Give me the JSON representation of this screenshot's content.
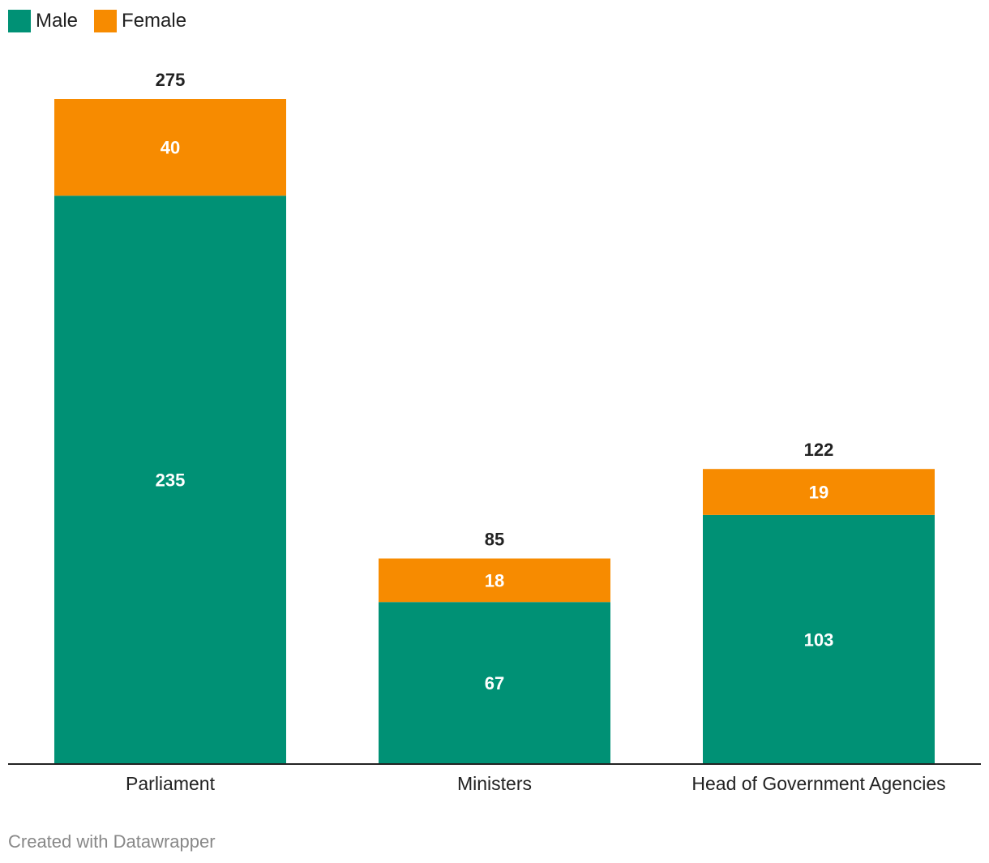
{
  "legend": {
    "items": [
      {
        "label": "Male",
        "color": "#009175"
      },
      {
        "label": "Female",
        "color": "#f78b00"
      }
    ]
  },
  "chart_data": {
    "type": "bar",
    "stacked": true,
    "categories": [
      "Parliament",
      "Ministers",
      "Head of Government Agencies"
    ],
    "series": [
      {
        "name": "Male",
        "color": "#009175",
        "values": [
          235,
          67,
          103
        ]
      },
      {
        "name": "Female",
        "color": "#f78b00",
        "values": [
          40,
          18,
          19
        ]
      }
    ],
    "totals": [
      275,
      85,
      122
    ],
    "ylim": [
      0,
      275
    ],
    "grid": false,
    "legend_position": "top-left"
  },
  "footer": {
    "credit": "Created with Datawrapper"
  }
}
